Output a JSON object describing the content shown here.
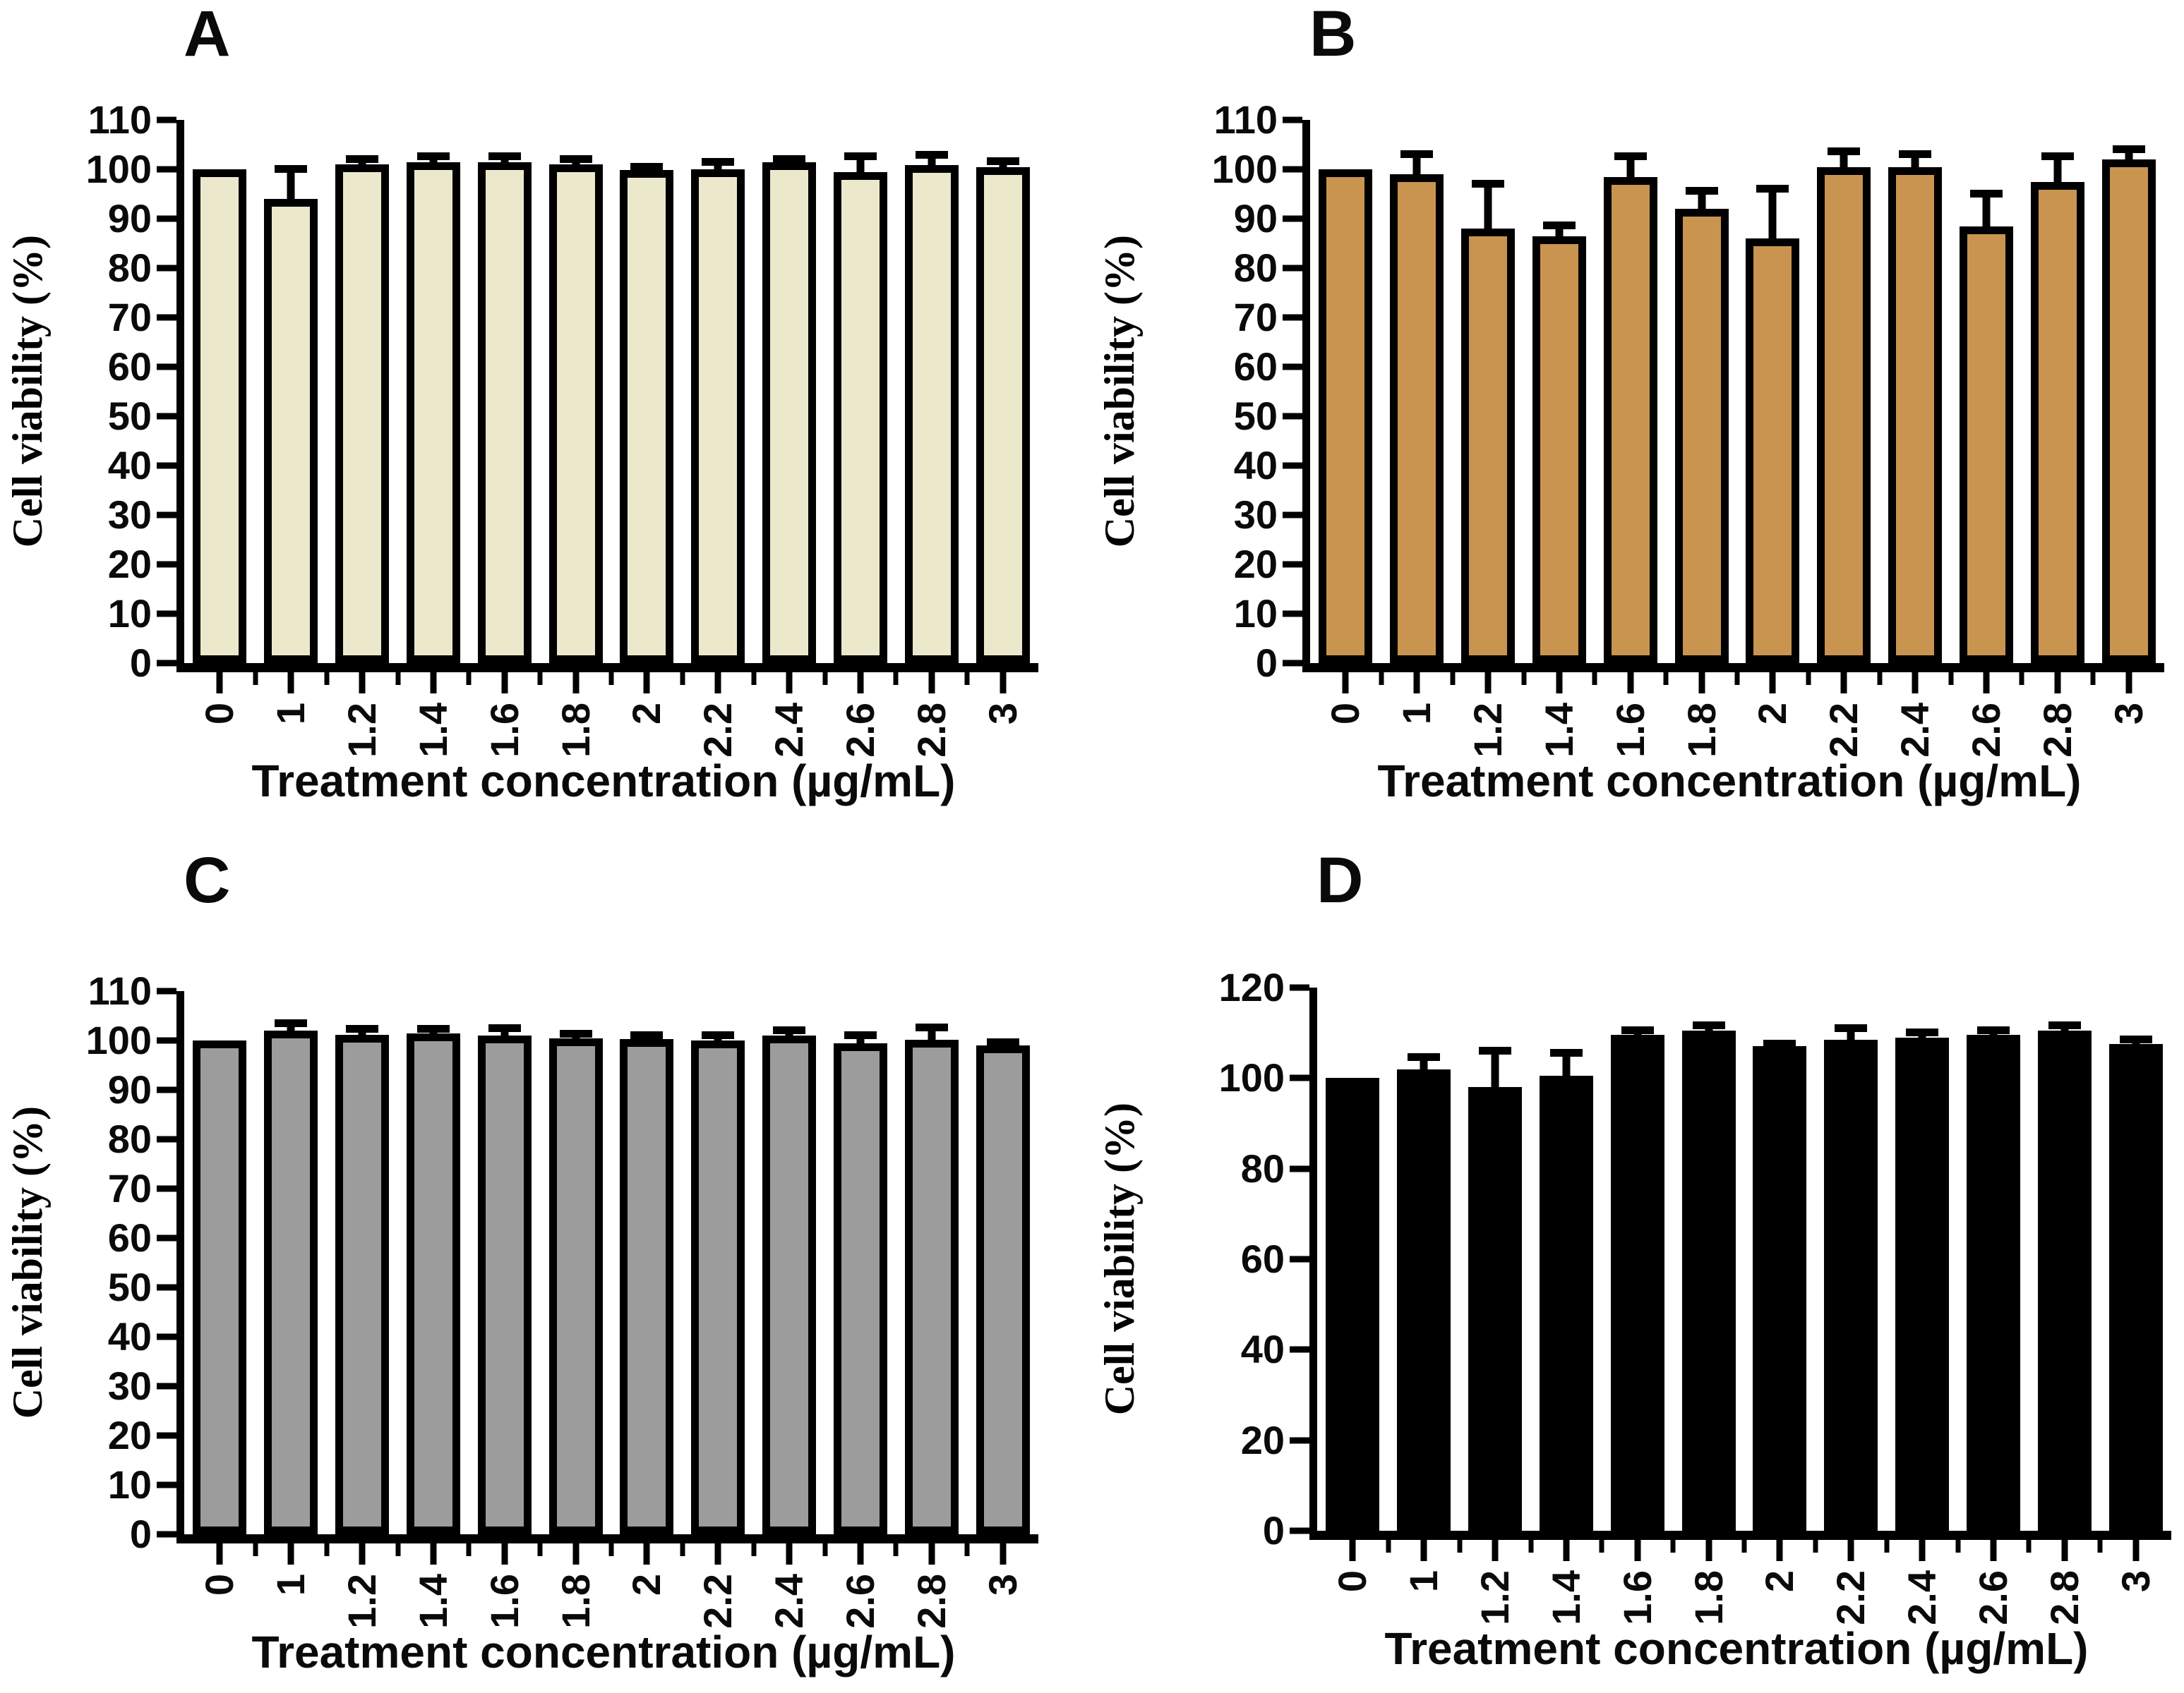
{
  "figure_background": "#ffffff",
  "axis_color": "#000000",
  "chart_data": [
    {
      "type": "bar",
      "panel_label": "A",
      "ylabel": "Cell viability (%)",
      "xlabel": "Treatment concentration (µg/mL)",
      "categories": [
        "0",
        "1",
        "1.2",
        "1.4",
        "1.6",
        "1.8",
        "2",
        "2.2",
        "2.4",
        "2.6",
        "2.8",
        "3"
      ],
      "values": [
        100,
        94,
        101,
        101.5,
        101.5,
        101,
        99.8,
        100,
        101.5,
        99.5,
        100.8,
        100.5
      ],
      "errors": [
        0,
        6.5,
        1.5,
        1.5,
        1.5,
        1.5,
        1,
        1.8,
        1,
        3.5,
        2.5,
        1.5
      ],
      "ylim": [
        0,
        110
      ],
      "ytick_step": 10,
      "bar_color": "#ece8cc",
      "bar_border_color": "#000000",
      "grid": false,
      "legend": "none"
    },
    {
      "type": "bar",
      "panel_label": "B",
      "ylabel": "Cell viability (%)",
      "xlabel": "Treatment concentration (µg/mL)",
      "categories": [
        "0",
        "1",
        "1.2",
        "1.4",
        "1.6",
        "1.8",
        "2",
        "2.2",
        "2.4",
        "2.6",
        "2.8",
        "3"
      ],
      "values": [
        100,
        99,
        88,
        86.5,
        98.5,
        92,
        86,
        100.5,
        100.5,
        88.5,
        97.5,
        102
      ],
      "errors": [
        0,
        4.5,
        9.5,
        2.5,
        4.5,
        4,
        10.5,
        3.5,
        3,
        7,
        5.5,
        2.5
      ],
      "ylim": [
        0,
        110
      ],
      "ytick_step": 10,
      "bar_color": "#c89450",
      "bar_border_color": "#000000",
      "grid": false,
      "legend": "none"
    },
    {
      "type": "bar",
      "panel_label": "C",
      "ylabel": "Cell viability (%)",
      "xlabel": "Treatment concentration (µg/mL)",
      "categories": [
        "0",
        "1",
        "1.2",
        "1.4",
        "1.6",
        "1.8",
        "2",
        "2.2",
        "2.4",
        "2.6",
        "2.8",
        "3"
      ],
      "values": [
        100,
        102,
        101.2,
        101.5,
        101,
        100.5,
        100.3,
        100,
        101,
        99.5,
        100.2,
        99
      ],
      "errors": [
        0,
        1.8,
        1.5,
        1.2,
        1.8,
        1.2,
        1.2,
        1.5,
        1.5,
        2,
        2.8,
        1
      ],
      "ylim": [
        0,
        110
      ],
      "ytick_step": 10,
      "bar_color": "#9c9c9c",
      "bar_border_color": "#000000",
      "grid": false,
      "legend": "none"
    },
    {
      "type": "bar",
      "panel_label": "D",
      "ylabel": "Cell viability (%)",
      "xlabel": "Treatment concentration (µg/mL)",
      "categories": [
        "0",
        "1",
        "1.2",
        "1.4",
        "1.6",
        "1.8",
        "2",
        "2.2",
        "2.4",
        "2.6",
        "2.8",
        "3"
      ],
      "values": [
        100,
        102,
        98,
        100.5,
        109.5,
        110.5,
        107,
        108.5,
        109,
        109.5,
        110.5,
        107.5
      ],
      "errors": [
        0,
        3,
        8.5,
        5.5,
        1.5,
        1.5,
        1,
        3,
        1.5,
        1.5,
        1.5,
        1.5
      ],
      "ylim": [
        0,
        120
      ],
      "ytick_step": 20,
      "bar_color": "#000000",
      "bar_border_color": "#000000",
      "grid": false,
      "legend": "none"
    }
  ]
}
